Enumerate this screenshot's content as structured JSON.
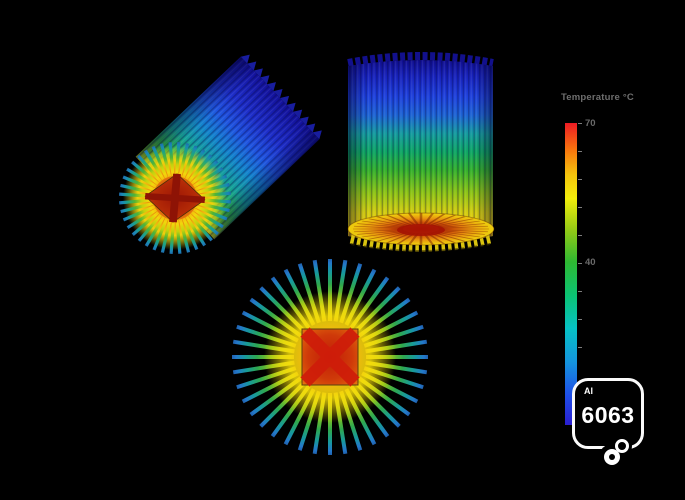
{
  "legend": {
    "title": "Temperature °C",
    "max_label": "70",
    "mid_label": "40",
    "colormap": [
      "#ed1b24",
      "#f8760d",
      "#f2ee0b",
      "#2eb832",
      "#0bc373",
      "#06c2c5",
      "#1495dd",
      "#1e4fe8",
      "#2a1ed0"
    ]
  },
  "material_badge": {
    "element_symbol": "Al",
    "alloy_number": "6063"
  },
  "icons": {
    "material_logo": "two-circles-logo"
  },
  "colors": {
    "background": "#000000",
    "hot_core": "#b02008",
    "cold_fin": "#1a17a0"
  }
}
